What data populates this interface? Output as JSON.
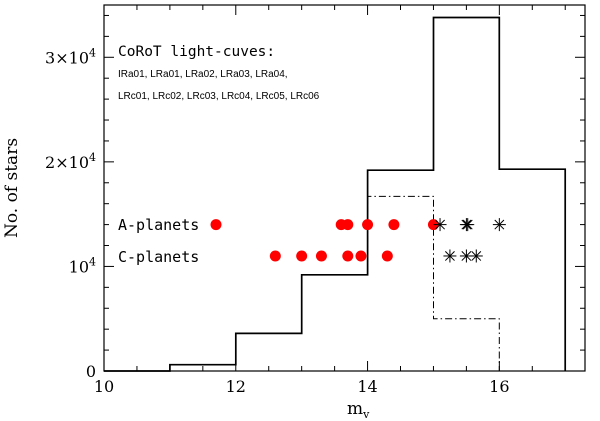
{
  "chart_data": {
    "type": "scatter",
    "xlabel": "m",
    "xlabel_sub": "v",
    "ylabel": "No. of stars",
    "xlim": [
      10,
      17.3
    ],
    "ylim": [
      0,
      35000
    ],
    "x_ticks": [
      {
        "value": 10,
        "label": "10"
      },
      {
        "value": 12,
        "label": "12"
      },
      {
        "value": 14,
        "label": "14"
      },
      {
        "value": 16,
        "label": "16"
      }
    ],
    "y_ticks": [
      {
        "value": 0,
        "label": "0",
        "exp": ""
      },
      {
        "value": 10000,
        "label": "10",
        "exp": "4"
      },
      {
        "value": 20000,
        "label": "2×10",
        "exp": "4"
      },
      {
        "value": 30000,
        "label": "3×10",
        "exp": "4"
      }
    ],
    "histogram_solid": {
      "edges": [
        10,
        11,
        12,
        13,
        14,
        15,
        16,
        17
      ],
      "counts": [
        0,
        600,
        3600,
        9200,
        19200,
        33800,
        19300
      ]
    },
    "histogram_dashdot": {
      "edges": [
        10,
        11,
        12,
        13,
        14,
        15,
        16,
        17
      ],
      "counts": [
        0,
        600,
        3600,
        9200,
        16700,
        5000,
        0
      ]
    },
    "annotation_title": "CoRoT light-cuves:",
    "annotation_lines": [
      "IRa01, LRa01, LRa02, LRa03, LRa04,",
      "LRc01, LRc02, LRc03, LRc04, LRc05, LRc06"
    ],
    "series": [
      {
        "name": "A-planets",
        "label_x": 10.1,
        "y": 14000,
        "dots": [
          11.7,
          13.6,
          13.7,
          14.0,
          14.4,
          15.0
        ],
        "stars": [
          15.1,
          15.5,
          15.52,
          16.0
        ],
        "color": "#ff0000"
      },
      {
        "name": "C-planets",
        "label_x": 10.1,
        "y": 11000,
        "dots": [
          12.6,
          13.0,
          13.3,
          13.7,
          13.9,
          14.3
        ],
        "stars": [
          15.25,
          15.5,
          15.65
        ],
        "color": "#ff0000"
      }
    ]
  }
}
